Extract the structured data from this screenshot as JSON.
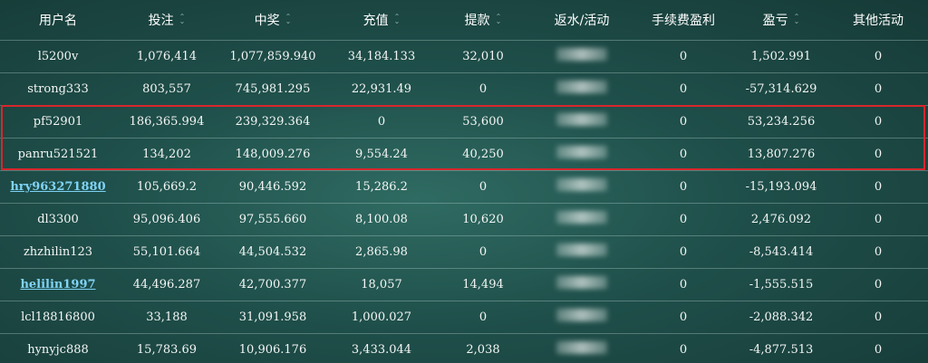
{
  "columns": [
    {
      "label": "用户名",
      "sortable": false
    },
    {
      "label": "投注",
      "sortable": true
    },
    {
      "label": "中奖",
      "sortable": true
    },
    {
      "label": "充值",
      "sortable": true
    },
    {
      "label": "提款",
      "sortable": true
    },
    {
      "label": "返水/活动",
      "sortable": false
    },
    {
      "label": "手续费盈利",
      "sortable": false
    },
    {
      "label": "盈亏",
      "sortable": true
    },
    {
      "label": "其他活动",
      "sortable": false
    }
  ],
  "rows": [
    {
      "user": "l5200v",
      "link": false,
      "bet": "1,076,414",
      "win": "1,077,859.940",
      "deposit": "34,184.133",
      "withdraw": "32,010",
      "fee": "0",
      "pnl": "1,502.991",
      "other": "0"
    },
    {
      "user": "strong333",
      "link": false,
      "bet": "803,557",
      "win": "745,981.295",
      "deposit": "22,931.49",
      "withdraw": "0",
      "fee": "0",
      "pnl": "-57,314.629",
      "other": "0"
    },
    {
      "user": "pf52901",
      "link": false,
      "bet": "186,365.994",
      "win": "239,329.364",
      "deposit": "0",
      "withdraw": "53,600",
      "fee": "0",
      "pnl": "53,234.256",
      "other": "0"
    },
    {
      "user": "panru521521",
      "link": false,
      "bet": "134,202",
      "win": "148,009.276",
      "deposit": "9,554.24",
      "withdraw": "40,250",
      "fee": "0",
      "pnl": "13,807.276",
      "other": "0"
    },
    {
      "user": "hry963271880",
      "link": true,
      "bet": "105,669.2",
      "win": "90,446.592",
      "deposit": "15,286.2",
      "withdraw": "0",
      "fee": "0",
      "pnl": "-15,193.094",
      "other": "0"
    },
    {
      "user": "dl3300",
      "link": false,
      "bet": "95,096.406",
      "win": "97,555.660",
      "deposit": "8,100.08",
      "withdraw": "10,620",
      "fee": "0",
      "pnl": "2,476.092",
      "other": "0"
    },
    {
      "user": "zhzhilin123",
      "link": false,
      "bet": "55,101.664",
      "win": "44,504.532",
      "deposit": "2,865.98",
      "withdraw": "0",
      "fee": "0",
      "pnl": "-8,543.414",
      "other": "0"
    },
    {
      "user": "helilin1997",
      "link": true,
      "bet": "44,496.287",
      "win": "42,700.377",
      "deposit": "18,057",
      "withdraw": "14,494",
      "fee": "0",
      "pnl": "-1,555.515",
      "other": "0"
    },
    {
      "user": "lcl18816800",
      "link": false,
      "bet": "33,188",
      "win": "31,091.958",
      "deposit": "1,000.027",
      "withdraw": "0",
      "fee": "0",
      "pnl": "-2,088.342",
      "other": "0"
    },
    {
      "user": "hynyjc888",
      "link": false,
      "bet": "15,783.69",
      "win": "10,906.176",
      "deposit": "3,433.044",
      "withdraw": "2,038",
      "fee": "0",
      "pnl": "-4,877.513",
      "other": "0"
    }
  ],
  "highlight_color": "#d8262c",
  "link_color": "#7fd3f5",
  "sort_icon": "sort-updown-icon"
}
